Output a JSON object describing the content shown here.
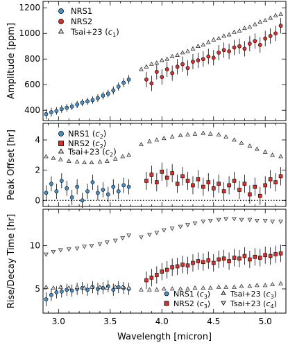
{
  "chart_data": [
    {
      "type": "scatter",
      "panel": "top",
      "ylabel": "Amplitude [ppm]",
      "xlim": [
        2.85,
        5.2
      ],
      "ylim": [
        320,
        1250
      ],
      "yticks": [
        400,
        600,
        800,
        1000,
        1200
      ],
      "legend_placement": "top-left",
      "series": [
        {
          "name": "NRS1",
          "marker": "circle",
          "color": "#4a90c8",
          "x": [
            2.88,
            2.93,
            2.98,
            3.03,
            3.08,
            3.13,
            3.18,
            3.23,
            3.28,
            3.33,
            3.38,
            3.43,
            3.48,
            3.53,
            3.58,
            3.63,
            3.68
          ],
          "y": [
            370,
            385,
            395,
            410,
            420,
            430,
            445,
            460,
            470,
            480,
            495,
            515,
            530,
            555,
            585,
            615,
            640
          ],
          "err": [
            40,
            35,
            30,
            30,
            30,
            28,
            28,
            28,
            28,
            28,
            30,
            30,
            30,
            32,
            32,
            35,
            35
          ]
        },
        {
          "name": "NRS2",
          "marker": "circle",
          "color": "#d9302b",
          "x": [
            3.85,
            3.9,
            3.95,
            4.0,
            4.05,
            4.1,
            4.15,
            4.2,
            4.25,
            4.3,
            4.35,
            4.4,
            4.45,
            4.5,
            4.55,
            4.6,
            4.65,
            4.7,
            4.75,
            4.8,
            4.85,
            4.9,
            4.95,
            5.0,
            5.05,
            5.1,
            5.15
          ],
          "y": [
            640,
            610,
            700,
            660,
            720,
            690,
            740,
            760,
            730,
            780,
            790,
            800,
            820,
            810,
            850,
            870,
            860,
            890,
            900,
            880,
            920,
            940,
            910,
            960,
            980,
            1000,
            1060
          ],
          "err": [
            60,
            60,
            60,
            60,
            60,
            60,
            60,
            60,
            60,
            60,
            60,
            60,
            60,
            60,
            60,
            60,
            60,
            60,
            60,
            60,
            60,
            60,
            60,
            60,
            60,
            60,
            60
          ]
        },
        {
          "name": "Tsai+23 (c1)",
          "marker": "triangle-up",
          "color": "#d8d8d8",
          "x": [
            3.8,
            3.85,
            3.9,
            3.95,
            4.0,
            4.05,
            4.1,
            4.15,
            4.2,
            4.25,
            4.3,
            4.35,
            4.4,
            4.45,
            4.5,
            4.55,
            4.6,
            4.65,
            4.7,
            4.75,
            4.8,
            4.85,
            4.9,
            4.95,
            5.0,
            5.05,
            5.1,
            5.15
          ],
          "y": [
            720,
            740,
            760,
            770,
            790,
            800,
            820,
            830,
            850,
            860,
            880,
            900,
            910,
            930,
            950,
            960,
            980,
            990,
            1010,
            1020,
            1040,
            1050,
            1070,
            1090,
            1100,
            1120,
            1140,
            1150
          ]
        }
      ]
    },
    {
      "type": "scatter",
      "panel": "middle",
      "ylabel": "Peak Offset [hr]",
      "xlim": [
        2.85,
        5.2
      ],
      "ylim": [
        -0.4,
        5.1
      ],
      "yticks": [
        0,
        2,
        4
      ],
      "reference_line": {
        "y": 0,
        "style": "dotted"
      },
      "legend_placement": "top-left",
      "series": [
        {
          "name": "NRS1 (c2)",
          "marker": "circle",
          "color": "#4a90c8",
          "x": [
            2.88,
            2.93,
            2.98,
            3.03,
            3.08,
            3.13,
            3.18,
            3.23,
            3.28,
            3.33,
            3.38,
            3.43,
            3.48,
            3.53,
            3.58,
            3.63,
            3.68
          ],
          "y": [
            0.5,
            1.1,
            0.6,
            1.3,
            0.8,
            0.2,
            0.9,
            0.0,
            0.6,
            1.2,
            0.5,
            0.7,
            0.4,
            0.9,
            0.6,
            1.0,
            0.9
          ],
          "err": [
            0.5,
            0.5,
            0.5,
            0.5,
            0.5,
            0.5,
            0.5,
            0.5,
            0.5,
            0.5,
            0.5,
            0.5,
            0.5,
            0.5,
            0.5,
            0.5,
            0.5
          ]
        },
        {
          "name": "NRS2 (c2)",
          "marker": "square",
          "color": "#d9302b",
          "x": [
            3.85,
            3.9,
            3.95,
            4.0,
            4.05,
            4.1,
            4.15,
            4.2,
            4.25,
            4.3,
            4.35,
            4.4,
            4.45,
            4.5,
            4.55,
            4.6,
            4.65,
            4.7,
            4.75,
            4.8,
            4.85,
            4.9,
            4.95,
            5.0,
            5.05,
            5.1,
            5.15
          ],
          "y": [
            1.3,
            1.7,
            1.2,
            1.9,
            1.5,
            1.8,
            1.1,
            1.6,
            1.3,
            1.0,
            1.4,
            0.9,
            1.2,
            0.8,
            1.1,
            0.6,
            1.0,
            1.3,
            0.7,
            1.1,
            0.4,
            0.9,
            0.3,
            1.0,
            1.4,
            1.2,
            1.6
          ],
          "err": [
            0.6,
            0.6,
            0.6,
            0.6,
            0.6,
            0.6,
            0.6,
            0.6,
            0.6,
            0.6,
            0.6,
            0.6,
            0.6,
            0.6,
            0.6,
            0.6,
            0.6,
            0.6,
            0.6,
            0.6,
            0.6,
            0.6,
            0.6,
            0.6,
            0.6,
            0.6,
            0.6
          ]
        },
        {
          "name": "Tsai+23 (c2)",
          "marker": "triangle-up",
          "color": "#d8d8d8",
          "x": [
            2.88,
            2.95,
            3.02,
            3.1,
            3.18,
            3.25,
            3.32,
            3.4,
            3.47,
            3.55,
            3.62,
            3.68,
            3.8,
            3.88,
            3.95,
            4.02,
            4.1,
            4.18,
            4.25,
            4.32,
            4.4,
            4.47,
            4.55,
            4.62,
            4.7,
            4.77,
            4.85,
            4.92,
            5.0,
            5.07,
            5.15
          ],
          "y": [
            2.9,
            2.8,
            2.7,
            2.6,
            2.55,
            2.5,
            2.5,
            2.55,
            2.6,
            2.75,
            2.9,
            3.0,
            3.7,
            3.9,
            4.0,
            4.1,
            4.2,
            4.3,
            4.35,
            4.4,
            4.45,
            4.4,
            4.35,
            4.2,
            4.0,
            3.8,
            3.6,
            3.4,
            3.2,
            3.0,
            2.9
          ]
        }
      ]
    },
    {
      "type": "scatter",
      "panel": "bottom",
      "xlabel": "Wavelength [micron]",
      "ylabel": "Rise/Decay Time [hr]",
      "xlim": [
        2.85,
        5.2
      ],
      "ylim": [
        2.2,
        14.2
      ],
      "xticks": [
        3.0,
        3.5,
        4.0,
        4.5,
        5.0
      ],
      "yticks": [
        5,
        10
      ],
      "legend_placement": "bottom-right",
      "series": [
        {
          "name": "NRS1 (c3)",
          "marker": "circle",
          "color": "#4a90c8",
          "x": [
            2.88,
            2.93,
            2.98,
            3.03,
            3.08,
            3.13,
            3.18,
            3.23,
            3.28,
            3.33,
            3.38,
            3.43,
            3.48,
            3.53,
            3.58,
            3.63,
            3.68
          ],
          "y": [
            3.8,
            4.3,
            4.6,
            4.7,
            4.9,
            4.8,
            5.0,
            5.1,
            4.9,
            5.2,
            5.0,
            5.1,
            5.3,
            4.9,
            5.2,
            5.1,
            5.0
          ],
          "err": [
            0.8,
            0.7,
            0.7,
            0.7,
            0.7,
            0.7,
            0.7,
            0.7,
            0.7,
            0.7,
            0.7,
            0.7,
            0.7,
            0.7,
            0.7,
            0.7,
            0.7
          ]
        },
        {
          "name": "NRS2 (c3)",
          "marker": "square",
          "color": "#d9302b",
          "x": [
            3.85,
            3.9,
            3.95,
            4.0,
            4.05,
            4.1,
            4.15,
            4.2,
            4.25,
            4.3,
            4.35,
            4.4,
            4.45,
            4.5,
            4.55,
            4.6,
            4.65,
            4.7,
            4.75,
            4.8,
            4.85,
            4.9,
            4.95,
            5.0,
            5.05,
            5.1,
            5.15
          ],
          "y": [
            6.0,
            6.3,
            6.6,
            7.0,
            7.2,
            7.5,
            7.6,
            7.8,
            7.7,
            8.0,
            8.2,
            8.1,
            8.3,
            8.0,
            8.4,
            8.5,
            8.2,
            8.6,
            8.5,
            8.8,
            8.4,
            8.7,
            8.6,
            8.9,
            8.8,
            9.0,
            9.1
          ],
          "err": [
            1.0,
            1.0,
            1.0,
            1.0,
            1.0,
            1.0,
            1.0,
            1.0,
            1.0,
            1.0,
            1.0,
            1.0,
            1.0,
            1.0,
            1.0,
            1.0,
            1.0,
            1.0,
            1.0,
            1.0,
            1.0,
            1.0,
            1.0,
            1.0,
            1.0,
            1.0,
            1.0
          ]
        },
        {
          "name": "Tsai+23 (c3)",
          "marker": "triangle-up",
          "color": "#d8d8d8",
          "x": [
            2.88,
            2.95,
            3.02,
            3.1,
            3.18,
            3.25,
            3.32,
            3.4,
            3.47,
            3.55,
            3.62,
            3.68,
            3.8,
            3.88,
            3.95,
            4.02,
            4.1,
            4.18,
            4.25,
            4.32,
            4.4,
            4.47,
            4.55,
            4.62,
            4.7,
            4.77,
            4.85,
            4.92,
            5.0,
            5.07,
            5.15
          ],
          "y": [
            5.2,
            5.1,
            5.2,
            5.1,
            5.2,
            5.1,
            5.2,
            5.2,
            5.1,
            5.2,
            5.2,
            5.1,
            4.9,
            4.9,
            4.9,
            5.0,
            5.0,
            5.0,
            5.0,
            5.1,
            5.1,
            5.1,
            5.2,
            5.2,
            5.2,
            5.3,
            5.3,
            5.4,
            5.4,
            5.5,
            5.6
          ]
        },
        {
          "name": "Tsai+23 (c4)",
          "marker": "triangle-down",
          "color": "#d8d8d8",
          "x": [
            2.88,
            2.95,
            3.02,
            3.1,
            3.18,
            3.25,
            3.32,
            3.4,
            3.47,
            3.55,
            3.62,
            3.68,
            3.8,
            3.88,
            3.95,
            4.02,
            4.1,
            4.18,
            4.25,
            4.32,
            4.4,
            4.47,
            4.55,
            4.62,
            4.7,
            4.77,
            4.85,
            4.92,
            5.0,
            5.07,
            5.15
          ],
          "y": [
            9.0,
            9.3,
            9.5,
            9.6,
            9.7,
            9.9,
            10.0,
            10.2,
            10.4,
            10.6,
            10.9,
            11.2,
            11.0,
            11.3,
            11.5,
            11.8,
            12.0,
            12.2,
            12.4,
            12.6,
            12.8,
            12.9,
            13.0,
            13.1,
            13.1,
            13.0,
            13.0,
            12.9,
            12.9,
            12.8,
            12.8
          ]
        }
      ]
    }
  ],
  "legends": {
    "top": {
      "nrs1": "NRS1",
      "nrs2": "NRS2",
      "tsai_base": "Tsai+23 (",
      "tsai_sym": "c",
      "tsai_sub": "1",
      "tsai_close": ")"
    },
    "middle": {
      "nrs1_base": "NRS1 (",
      "nrs1_sym": "c",
      "nrs1_sub": "2",
      "nrs1_close": ")",
      "nrs2_base": "NRS2 (",
      "nrs2_sym": "c",
      "nrs2_sub": "2",
      "nrs2_close": ")",
      "tsai_base": "Tsai+23 (",
      "tsai_sym": "c",
      "tsai_sub": "2",
      "tsai_close": ")"
    },
    "bottom": {
      "nrs1_base": "NRS1 (",
      "nrs1_sym": "c",
      "nrs1_sub": "3",
      "nrs1_close": ")",
      "nrs2_base": "NRS2 (",
      "nrs2_sym": "c",
      "nrs2_sub": "3",
      "nrs2_close": ")",
      "tsai3_base": "Tsai+23 (",
      "tsai3_sym": "c",
      "tsai3_sub": "3",
      "tsai3_close": ")",
      "tsai4_base": "Tsai+23 (",
      "tsai4_sym": "c",
      "tsai4_sub": "4",
      "tsai4_close": ")"
    }
  },
  "colors": {
    "nrs1": "#4a90c8",
    "nrs2": "#d9302b",
    "tsai": "#d8d8d8",
    "axis": "#000000"
  }
}
